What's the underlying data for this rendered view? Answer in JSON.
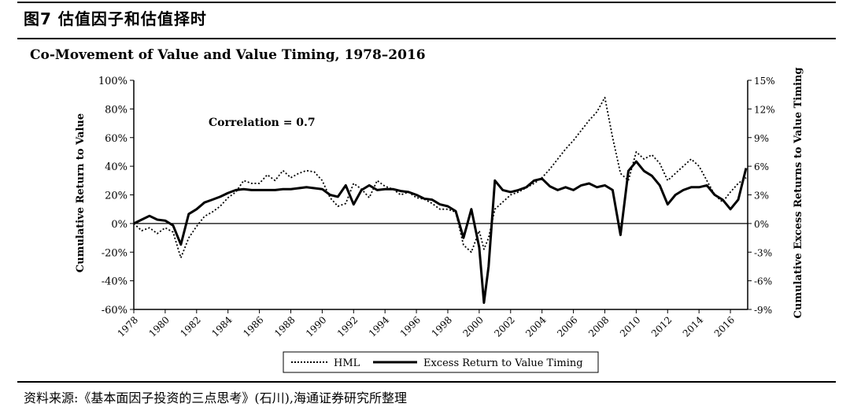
{
  "figure_title": "图7  估值因子和估值择时",
  "source_note": "资料来源:《基本面因子投资的三点思考》(石川),海通证券研究所整理",
  "chart_data": {
    "type": "line",
    "title": "Co-Movement of Value and Value Timing, 1978–2016",
    "annotation": "Correlation = 0.7",
    "ylabel": "Cumulative Return to Value",
    "y2label": "Cumulative Excess Returns to Value Timing",
    "ylim": [
      -60,
      100
    ],
    "y2lim": [
      -9,
      15
    ],
    "xlim": [
      1978,
      2017.1
    ],
    "y_ticks": [
      "100%",
      "80%",
      "60%",
      "40%",
      "20%",
      "0%",
      "-20%",
      "-40%",
      "-60%"
    ],
    "y_tick_values": [
      100,
      80,
      60,
      40,
      20,
      0,
      -20,
      -40,
      -60
    ],
    "y2_ticks": [
      "15%",
      "12%",
      "9%",
      "6%",
      "3%",
      "0%",
      "-3%",
      "-6%",
      "-9%"
    ],
    "y2_tick_values": [
      15,
      12,
      9,
      6,
      3,
      0,
      -3,
      -6,
      -9
    ],
    "x_ticks": [
      "1978",
      "1980",
      "1982",
      "1984",
      "1986",
      "1988",
      "1990",
      "1992",
      "1994",
      "1996",
      "1998",
      "2000",
      "2002",
      "2004",
      "2006",
      "2008",
      "2010",
      "2012",
      "2014",
      "2016"
    ],
    "x_tick_values": [
      1978,
      1980,
      1982,
      1984,
      1986,
      1988,
      1990,
      1992,
      1994,
      1996,
      1998,
      2000,
      2002,
      2004,
      2006,
      2008,
      2010,
      2012,
      2014,
      2016
    ],
    "legend_position": "bottom",
    "series": [
      {
        "name": "HML",
        "axis": "left",
        "style": "dotted",
        "x": [
          1978,
          1978.5,
          1979,
          1979.5,
          1980,
          1980.5,
          1981,
          1981.5,
          1982,
          1982.5,
          1983,
          1983.5,
          1984,
          1984.5,
          1985,
          1985.5,
          1986,
          1986.5,
          1987,
          1987.5,
          1988,
          1988.5,
          1989,
          1989.5,
          1990,
          1990.5,
          1991,
          1991.5,
          1992,
          1992.5,
          1993,
          1993.5,
          1994,
          1994.5,
          1995,
          1995.5,
          1996,
          1996.5,
          1997,
          1997.5,
          1998,
          1998.5,
          1999,
          1999.5,
          2000,
          2000.3,
          2000.6,
          2001,
          2001.5,
          2002,
          2002.5,
          2003,
          2003.5,
          2004,
          2004.5,
          2005,
          2005.5,
          2006,
          2006.5,
          2007,
          2007.5,
          2008,
          2008.5,
          2009,
          2009.5,
          2010,
          2010.5,
          2011,
          2011.5,
          2012,
          2012.5,
          2013,
          2013.5,
          2014,
          2014.5,
          2015,
          2015.5,
          2016,
          2016.5,
          2017
        ],
        "values": [
          0,
          -5,
          -3,
          -7,
          -3,
          -6,
          -24,
          -10,
          -2,
          5,
          8,
          12,
          18,
          22,
          30,
          28,
          28,
          34,
          30,
          37,
          32,
          35,
          37,
          36,
          30,
          18,
          12,
          14,
          28,
          24,
          18,
          30,
          26,
          24,
          20,
          22,
          18,
          17,
          14,
          10,
          10,
          8,
          -15,
          -20,
          -5,
          -18,
          -10,
          10,
          15,
          20,
          22,
          25,
          28,
          32,
          38,
          45,
          52,
          58,
          65,
          72,
          78,
          88,
          60,
          35,
          30,
          50,
          45,
          48,
          42,
          30,
          35,
          40,
          45,
          40,
          30,
          20,
          15,
          22,
          28,
          32
        ]
      },
      {
        "name": "Excess Return to Value Timing",
        "axis": "right",
        "style": "solid",
        "x": [
          1978,
          1978.5,
          1979,
          1979.5,
          1980,
          1980.5,
          1981,
          1981.5,
          1982,
          1982.5,
          1983,
          1983.5,
          1984,
          1984.5,
          1985,
          1985.5,
          1986,
          1986.5,
          1987,
          1987.5,
          1988,
          1988.5,
          1989,
          1989.5,
          1990,
          1990.5,
          1991,
          1991.5,
          1992,
          1992.5,
          1993,
          1993.5,
          1994,
          1994.5,
          1995,
          1995.5,
          1996,
          1996.5,
          1997,
          1997.5,
          1998,
          1998.5,
          1999,
          1999.5,
          2000,
          2000.3,
          2000.6,
          2001,
          2001.5,
          2002,
          2002.5,
          2003,
          2003.5,
          2004,
          2004.5,
          2005,
          2005.5,
          2006,
          2006.5,
          2007,
          2007.5,
          2008,
          2008.5,
          2009,
          2009.5,
          2010,
          2010.5,
          2011,
          2011.5,
          2012,
          2012.5,
          2013,
          2013.5,
          2014,
          2014.5,
          2015,
          2015.5,
          2016,
          2016.5,
          2017
        ],
        "values": [
          0,
          0.4,
          0.8,
          0.4,
          0.3,
          -0.2,
          -2.2,
          1.0,
          1.5,
          2.2,
          2.5,
          2.8,
          3.2,
          3.5,
          3.6,
          3.5,
          3.5,
          3.5,
          3.5,
          3.6,
          3.6,
          3.7,
          3.8,
          3.7,
          3.6,
          3.0,
          2.8,
          4.0,
          2.0,
          3.5,
          4.0,
          3.5,
          3.6,
          3.6,
          3.4,
          3.3,
          3.0,
          2.6,
          2.5,
          2.0,
          1.8,
          1.3,
          -1.5,
          1.5,
          -2.5,
          -8.3,
          -4.5,
          4.5,
          3.5,
          3.3,
          3.5,
          3.8,
          4.5,
          4.7,
          3.9,
          3.5,
          3.8,
          3.5,
          4.0,
          4.2,
          3.8,
          4.0,
          3.5,
          -1.2,
          5.5,
          6.5,
          5.5,
          5.0,
          4.0,
          2.0,
          3.0,
          3.5,
          3.8,
          3.8,
          4.0,
          3.0,
          2.5,
          1.5,
          2.5,
          5.8
        ]
      }
    ]
  }
}
